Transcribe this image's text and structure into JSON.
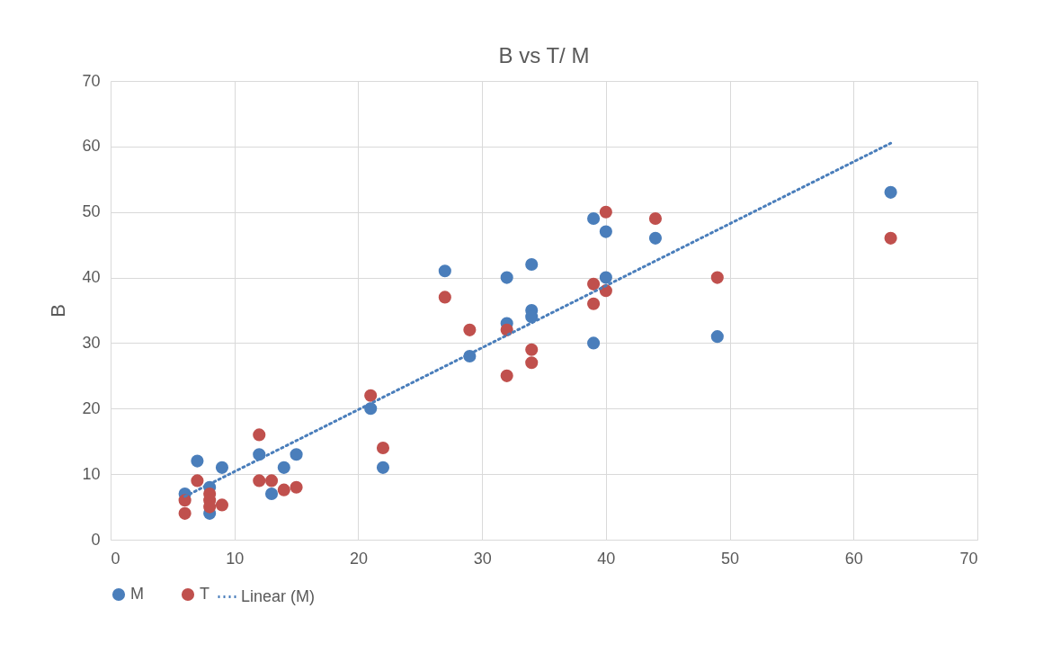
{
  "chart_data": {
    "type": "scatter",
    "title": "B vs T/ M",
    "ylabel": "B",
    "xlim": [
      0,
      70
    ],
    "xticks": [
      0,
      10,
      20,
      30,
      40,
      50,
      60,
      70
    ],
    "ylim": [
      0,
      70
    ],
    "yticks": [
      0,
      10,
      20,
      30,
      40,
      50,
      60,
      70
    ],
    "grid": true,
    "legend": "bottom",
    "marker": "circle",
    "series": [
      {
        "name": "M",
        "color": "#4a7ebb",
        "x": [
          6,
          7,
          8,
          8,
          9,
          12,
          13,
          14,
          15,
          21,
          22,
          27,
          29,
          32,
          32,
          34,
          34,
          34,
          39,
          39,
          40,
          40,
          44,
          49,
          63
        ],
        "values": [
          7,
          12,
          8,
          4,
          11,
          13,
          7,
          11,
          13,
          20,
          11,
          41,
          28,
          40,
          33,
          42,
          35,
          34,
          49,
          30,
          47,
          40,
          46,
          31,
          53
        ]
      },
      {
        "name": "T",
        "color": "#c0504d",
        "x": [
          6,
          6,
          7,
          8,
          8,
          8,
          9,
          12,
          12,
          13,
          14,
          15,
          21,
          22,
          27,
          29,
          32,
          32,
          34,
          34,
          39,
          39,
          40,
          40,
          44,
          49,
          63
        ],
        "values": [
          6,
          4,
          9,
          7,
          6,
          5,
          5.3,
          16,
          9,
          9,
          7.6,
          8,
          22,
          14,
          37,
          32,
          32,
          25,
          29,
          27,
          39,
          36,
          50,
          38,
          49,
          40,
          46
        ]
      },
      {
        "name": "Linear (M)",
        "type": "line",
        "line_style": "dotted",
        "marker": "none",
        "color": "#4a7ebb",
        "x": [
          6,
          63
        ],
        "values": [
          6.6,
          60.5
        ]
      }
    ]
  }
}
